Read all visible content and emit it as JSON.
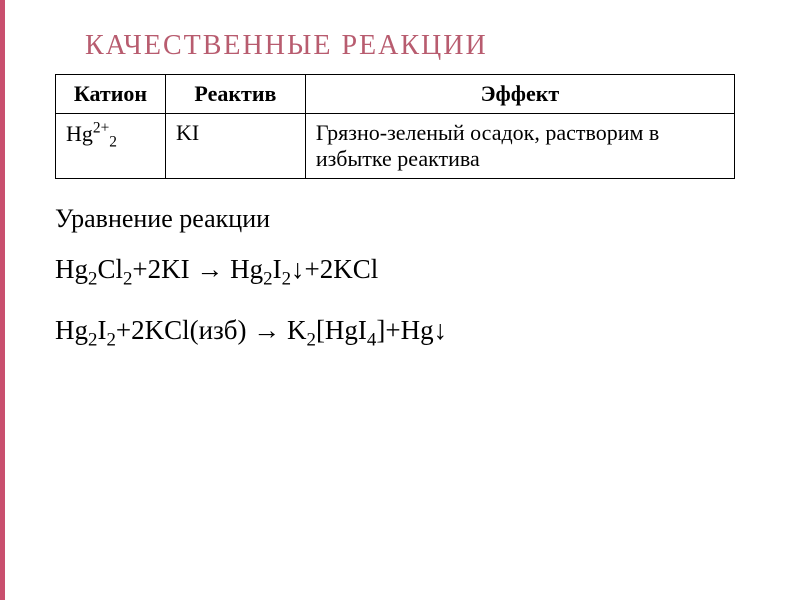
{
  "title": "КАЧЕСТВЕННЫЕ   РЕАКЦИИ",
  "table": {
    "headers": {
      "cation": "Катион",
      "reagent": "Реактив",
      "effect": "Эффект"
    },
    "row": {
      "cation_base": "Hg",
      "cation_sup": "2+",
      "cation_sub": "2",
      "reagent": "KI",
      "effect": "Грязно-зеленый осадок, растворим в избытке реактива"
    }
  },
  "section_title": "Уравнение реакции",
  "equations": {
    "eq1": {
      "parts": [
        "Hg",
        "2",
        "Cl",
        "2",
        "+2KI → Hg",
        "2",
        "I",
        "2",
        "↓+2KCl"
      ]
    },
    "eq2": {
      "parts": [
        "Hg",
        "2",
        "I",
        "2",
        "+2KCl(изб) → K",
        "2",
        "[HgI",
        "4",
        "]+Hg↓"
      ]
    }
  },
  "colors": {
    "title": "#b85c6f",
    "border": "#c94f6e",
    "text": "#000000",
    "background": "#ffffff",
    "table_border": "#000000"
  }
}
